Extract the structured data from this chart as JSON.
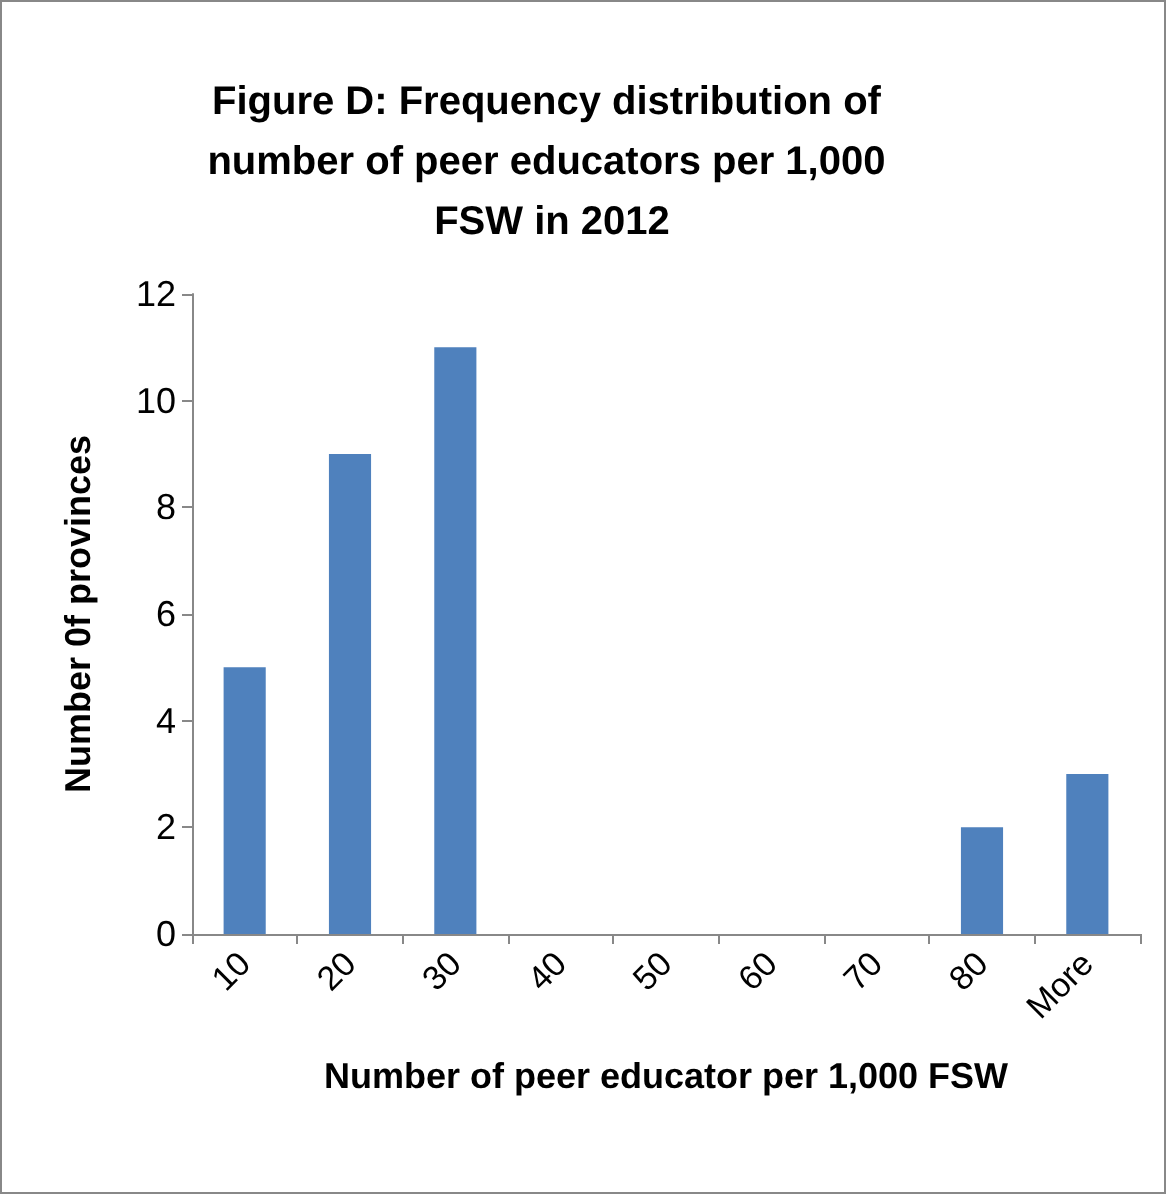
{
  "chart_data": {
    "type": "bar",
    "title": "Figure D: Frequency distribution of number of peer educators per 1,000 FSW in 2012",
    "xlabel": "Number of peer educator per 1,000 FSW",
    "ylabel": "Number 0f provinces",
    "categories": [
      "10",
      "20",
      "30",
      "40",
      "50",
      "60",
      "70",
      "80",
      "More"
    ],
    "values": [
      5,
      9,
      11,
      0,
      0,
      0,
      0,
      2,
      3
    ],
    "color": "#4f81bd",
    "ylim": [
      0,
      12
    ],
    "yticks": [
      0,
      2,
      4,
      6,
      8,
      10,
      12
    ],
    "grid": false
  }
}
